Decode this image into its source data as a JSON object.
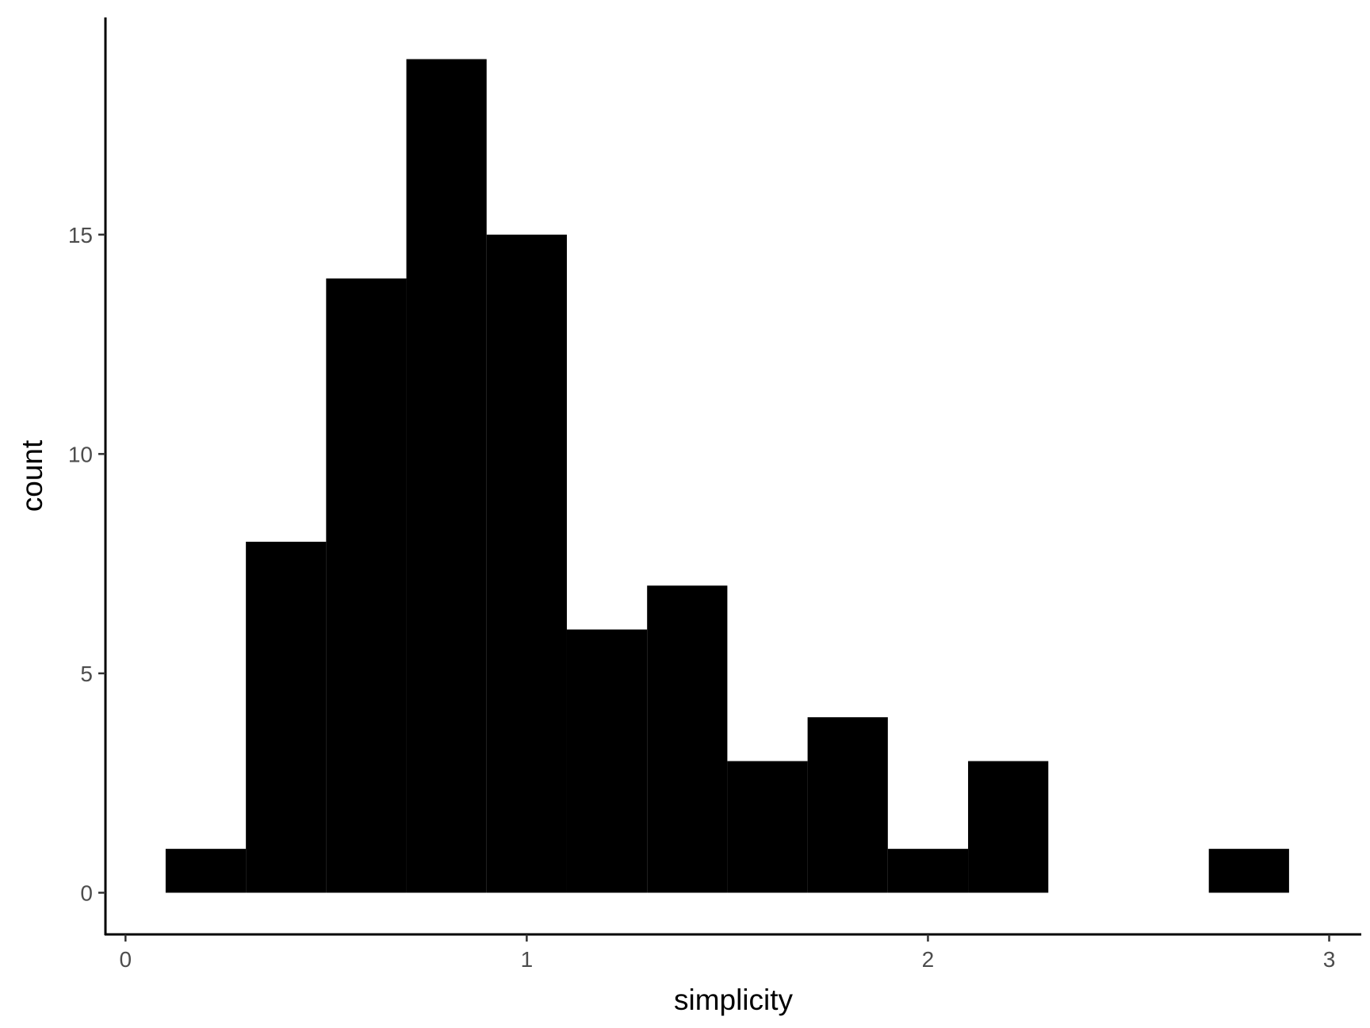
{
  "chart_data": {
    "type": "bar",
    "subtype": "histogram",
    "xlabel": "simplicity",
    "ylabel": "count",
    "x_ticks": [
      0,
      1,
      2,
      3
    ],
    "y_ticks": [
      0,
      5,
      10,
      15
    ],
    "xlim": [
      -0.05,
      3.08
    ],
    "ylim": [
      -0.95,
      19.95
    ],
    "bin_width": 0.2,
    "bins": [
      {
        "x0": 0.1,
        "x1": 0.3,
        "count": 1
      },
      {
        "x0": 0.3,
        "x1": 0.5,
        "count": 8
      },
      {
        "x0": 0.5,
        "x1": 0.7,
        "count": 14
      },
      {
        "x0": 0.7,
        "x1": 0.9,
        "count": 19
      },
      {
        "x0": 0.9,
        "x1": 1.1,
        "count": 15
      },
      {
        "x0": 1.1,
        "x1": 1.3,
        "count": 6
      },
      {
        "x0": 1.3,
        "x1": 1.5,
        "count": 7
      },
      {
        "x0": 1.5,
        "x1": 1.7,
        "count": 3
      },
      {
        "x0": 1.7,
        "x1": 1.9,
        "count": 4
      },
      {
        "x0": 1.9,
        "x1": 2.1,
        "count": 1
      },
      {
        "x0": 2.1,
        "x1": 2.3,
        "count": 3
      },
      {
        "x0": 2.3,
        "x1": 2.5,
        "count": 0
      },
      {
        "x0": 2.5,
        "x1": 2.7,
        "count": 0
      },
      {
        "x0": 2.7,
        "x1": 2.9,
        "count": 1
      }
    ],
    "bar_color": "#000000",
    "grid": false,
    "legend": "none"
  }
}
